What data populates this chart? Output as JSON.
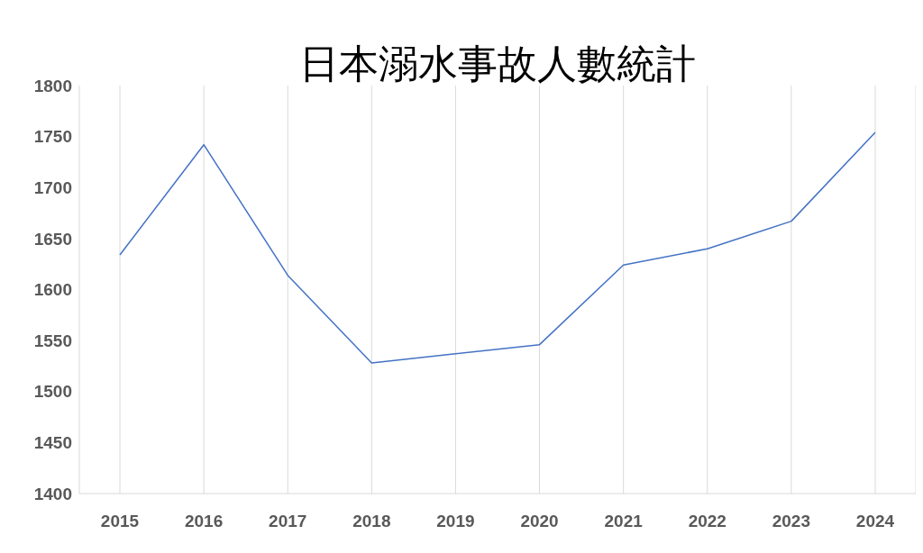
{
  "chart_data": {
    "type": "line",
    "title": "日本溺水事故人數統計",
    "categories": [
      "2015",
      "2016",
      "2017",
      "2018",
      "2019",
      "2020",
      "2021",
      "2022",
      "2023",
      "2024"
    ],
    "series": [
      {
        "color": "#4472c4",
        "values": [
          1634,
          1742,
          1614,
          1528,
          1537,
          1546,
          1624,
          1640,
          1667,
          1754
        ]
      }
    ],
    "ylim": [
      1400,
      1800
    ],
    "yticks": [
      1400,
      1450,
      1500,
      1550,
      1600,
      1650,
      1700,
      1750,
      1800
    ],
    "grid": "x",
    "marker": "none",
    "line_style": "solid",
    "legend": false
  }
}
